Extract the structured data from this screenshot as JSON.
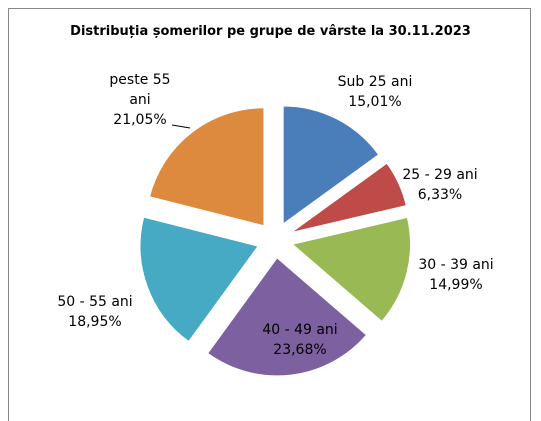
{
  "chart_data": {
    "type": "pie",
    "title": "Distribuția șomerilor pe grupe de vârste la 30.11.2023",
    "categories": [
      "Sub 25 ani",
      "25 - 29 ani",
      "30 - 39 ani",
      "40 - 49 ani",
      "50 - 55 ani",
      "peste 55 ani"
    ],
    "values": [
      15.01,
      6.33,
      14.99,
      23.68,
      18.95,
      21.05
    ],
    "value_labels": [
      "15,01%",
      "6,33%",
      "14,99%",
      "23,68%",
      "18,95%",
      "21,05%"
    ],
    "colors": [
      "#4a7ebb",
      "#be4b48",
      "#98b954",
      "#7d60a0",
      "#46aac5",
      "#dd8a3e"
    ]
  }
}
